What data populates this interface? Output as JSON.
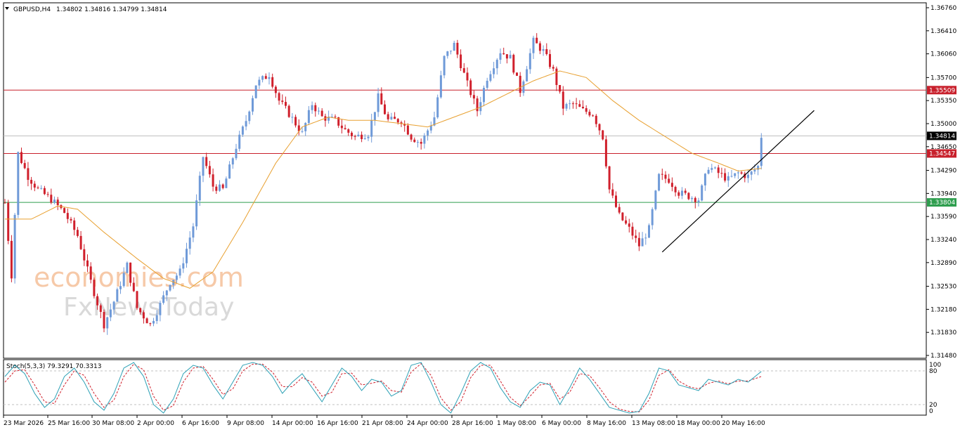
{
  "header": {
    "symbol": "GBPUSD,H4",
    "ohlc": "1.34802 1.34816 1.34799 1.34814"
  },
  "watermark": {
    "line1": "economies.com",
    "line2": "FxNewsToday"
  },
  "chart_data": [
    {
      "type": "candlestick",
      "title": "GBPUSD,H4",
      "y_ticks": [
        "1.36760",
        "1.36410",
        "1.36060",
        "1.35700",
        "1.35350",
        "1.35000",
        "1.34650",
        "1.34290",
        "1.33940",
        "1.33590",
        "1.33240",
        "1.32890",
        "1.32530",
        "1.32180",
        "1.31830",
        "1.31480"
      ],
      "ylim": [
        1.3148,
        1.3676
      ],
      "x_ticks": [
        "23 Mar 2026",
        "25 Mar 16:00",
        "30 Mar 08:00",
        "2 Apr 00:00",
        "6 Apr 16:00",
        "9 Apr 08:00",
        "14 Apr 00:00",
        "16 Apr 16:00",
        "21 Apr 08:00",
        "24 Apr 00:00",
        "28 Apr 16:00",
        "1 May 08:00",
        "6 May 00:00",
        "8 May 16:00",
        "13 May 08:00",
        "18 May 00:00",
        "20 May 16:00"
      ],
      "up_color": "#6f9ad8",
      "down_color": "#d0202c",
      "ma_color": "#e8a030",
      "price_series": [
        [
          0,
          1.338
        ],
        [
          2,
          1.327
        ],
        [
          4,
          1.3455
        ],
        [
          7,
          1.342
        ],
        [
          10,
          1.34
        ],
        [
          14,
          1.3385
        ],
        [
          18,
          1.3365
        ],
        [
          22,
          1.333
        ],
        [
          26,
          1.326
        ],
        [
          30,
          1.3195
        ],
        [
          33,
          1.323
        ],
        [
          37,
          1.3285
        ],
        [
          40,
          1.322
        ],
        [
          44,
          1.3195
        ],
        [
          47,
          1.3225
        ],
        [
          50,
          1.326
        ],
        [
          53,
          1.3275
        ],
        [
          57,
          1.3345
        ],
        [
          60,
          1.345
        ],
        [
          63,
          1.3405
        ],
        [
          66,
          1.34
        ],
        [
          70,
          1.3465
        ],
        [
          73,
          1.3505
        ],
        [
          76,
          1.356
        ],
        [
          80,
          1.3575
        ],
        [
          83,
          1.3535
        ],
        [
          86,
          1.3515
        ],
        [
          90,
          1.3485
        ],
        [
          93,
          1.353
        ],
        [
          96,
          1.351
        ],
        [
          100,
          1.3505
        ],
        [
          103,
          1.349
        ],
        [
          106,
          1.348
        ],
        [
          110,
          1.3485
        ],
        [
          113,
          1.354
        ],
        [
          116,
          1.3505
        ],
        [
          120,
          1.3505
        ],
        [
          123,
          1.348
        ],
        [
          126,
          1.347
        ],
        [
          130,
          1.351
        ],
        [
          133,
          1.36
        ],
        [
          136,
          1.362
        ],
        [
          140,
          1.356
        ],
        [
          143,
          1.352
        ],
        [
          146,
          1.357
        ],
        [
          150,
          1.361
        ],
        [
          153,
          1.36
        ],
        [
          156,
          1.355
        ],
        [
          160,
          1.3625
        ],
        [
          163,
          1.361
        ],
        [
          166,
          1.358
        ],
        [
          169,
          1.3525
        ],
        [
          172,
          1.353
        ],
        [
          175,
          1.352
        ],
        [
          178,
          1.3515
        ],
        [
          181,
          1.348
        ],
        [
          183,
          1.34
        ],
        [
          186,
          1.336
        ],
        [
          189,
          1.334
        ],
        [
          192,
          1.3315
        ],
        [
          195,
          1.334
        ],
        [
          198,
          1.342
        ],
        [
          201,
          1.3415
        ],
        [
          204,
          1.3395
        ],
        [
          207,
          1.339
        ],
        [
          210,
          1.3385
        ],
        [
          213,
          1.3435
        ],
        [
          216,
          1.3425
        ],
        [
          219,
          1.3415
        ],
        [
          222,
          1.3425
        ],
        [
          225,
          1.342
        ],
        [
          228,
          1.3435
        ],
        [
          229,
          1.3481
        ]
      ],
      "bars_shown": 230,
      "moving_average": [
        [
          0,
          1.3355
        ],
        [
          8,
          1.3355
        ],
        [
          16,
          1.3375
        ],
        [
          22,
          1.337
        ],
        [
          30,
          1.3335
        ],
        [
          40,
          1.3295
        ],
        [
          48,
          1.3265
        ],
        [
          56,
          1.325
        ],
        [
          63,
          1.3275
        ],
        [
          72,
          1.335
        ],
        [
          82,
          1.344
        ],
        [
          90,
          1.3495
        ],
        [
          98,
          1.351
        ],
        [
          104,
          1.3505
        ],
        [
          112,
          1.3505
        ],
        [
          120,
          1.35
        ],
        [
          128,
          1.3495
        ],
        [
          136,
          1.351
        ],
        [
          144,
          1.3525
        ],
        [
          152,
          1.3545
        ],
        [
          160,
          1.3565
        ],
        [
          168,
          1.358
        ],
        [
          176,
          1.357
        ],
        [
          184,
          1.3535
        ],
        [
          192,
          1.3505
        ],
        [
          200,
          1.348
        ],
        [
          208,
          1.3455
        ],
        [
          216,
          1.344
        ],
        [
          222,
          1.3428
        ],
        [
          229,
          1.3432
        ]
      ],
      "horizontal_lines": [
        {
          "value": 1.35509,
          "label": "1.35509",
          "color": "#c8202c"
        },
        {
          "value": 1.34547,
          "label": "1.34547",
          "color": "#c8202c"
        },
        {
          "value": 1.33804,
          "label": "1.33804",
          "color": "#2e9e4e"
        },
        {
          "value": 1.34814,
          "label": "1.34814",
          "color": "#000000",
          "current": true
        }
      ],
      "trendline": {
        "from": [
          199,
          1.3305
        ],
        "to": [
          245,
          1.352
        ]
      }
    },
    {
      "type": "line",
      "title": "Stoch(5,3,3) 79.3291 70.3313",
      "y_ticks": [
        "100",
        "80",
        "20",
        "0"
      ],
      "ylim": [
        0,
        100
      ],
      "levels": [
        80,
        20
      ],
      "main_color": "#2ba0b5",
      "signal_color": "#d0202c",
      "main": [
        [
          0,
          70
        ],
        [
          3,
          90
        ],
        [
          6,
          75
        ],
        [
          9,
          40
        ],
        [
          12,
          15
        ],
        [
          15,
          30
        ],
        [
          18,
          70
        ],
        [
          21,
          85
        ],
        [
          24,
          60
        ],
        [
          27,
          25
        ],
        [
          30,
          10
        ],
        [
          33,
          40
        ],
        [
          36,
          85
        ],
        [
          39,
          95
        ],
        [
          42,
          70
        ],
        [
          45,
          20
        ],
        [
          48,
          5
        ],
        [
          51,
          30
        ],
        [
          54,
          75
        ],
        [
          57,
          90
        ],
        [
          60,
          85
        ],
        [
          63,
          55
        ],
        [
          66,
          30
        ],
        [
          69,
          60
        ],
        [
          72,
          90
        ],
        [
          75,
          95
        ],
        [
          78,
          90
        ],
        [
          81,
          70
        ],
        [
          84,
          40
        ],
        [
          87,
          60
        ],
        [
          90,
          75
        ],
        [
          93,
          50
        ],
        [
          96,
          25
        ],
        [
          99,
          55
        ],
        [
          102,
          85
        ],
        [
          105,
          70
        ],
        [
          108,
          45
        ],
        [
          111,
          65
        ],
        [
          114,
          60
        ],
        [
          117,
          35
        ],
        [
          120,
          45
        ],
        [
          123,
          90
        ],
        [
          126,
          95
        ],
        [
          129,
          60
        ],
        [
          132,
          20
        ],
        [
          135,
          5
        ],
        [
          138,
          40
        ],
        [
          141,
          80
        ],
        [
          144,
          95
        ],
        [
          147,
          85
        ],
        [
          150,
          50
        ],
        [
          153,
          25
        ],
        [
          156,
          15
        ],
        [
          159,
          45
        ],
        [
          162,
          60
        ],
        [
          165,
          55
        ],
        [
          168,
          20
        ],
        [
          171,
          50
        ],
        [
          174,
          85
        ],
        [
          177,
          65
        ],
        [
          180,
          40
        ],
        [
          183,
          15
        ],
        [
          186,
          10
        ],
        [
          189,
          5
        ],
        [
          192,
          8
        ],
        [
          195,
          40
        ],
        [
          198,
          85
        ],
        [
          201,
          80
        ],
        [
          204,
          55
        ],
        [
          207,
          50
        ],
        [
          210,
          45
        ],
        [
          213,
          65
        ],
        [
          216,
          60
        ],
        [
          219,
          55
        ],
        [
          222,
          65
        ],
        [
          225,
          60
        ],
        [
          229,
          79
        ]
      ],
      "signal": [
        [
          0,
          60
        ],
        [
          3,
          80
        ],
        [
          6,
          82
        ],
        [
          9,
          55
        ],
        [
          12,
          25
        ],
        [
          15,
          22
        ],
        [
          18,
          55
        ],
        [
          21,
          80
        ],
        [
          24,
          72
        ],
        [
          27,
          40
        ],
        [
          30,
          15
        ],
        [
          33,
          28
        ],
        [
          36,
          70
        ],
        [
          39,
          92
        ],
        [
          42,
          82
        ],
        [
          45,
          35
        ],
        [
          48,
          10
        ],
        [
          51,
          18
        ],
        [
          54,
          60
        ],
        [
          57,
          85
        ],
        [
          60,
          88
        ],
        [
          63,
          65
        ],
        [
          66,
          38
        ],
        [
          69,
          48
        ],
        [
          72,
          80
        ],
        [
          75,
          92
        ],
        [
          78,
          92
        ],
        [
          81,
          78
        ],
        [
          84,
          52
        ],
        [
          87,
          52
        ],
        [
          90,
          68
        ],
        [
          93,
          60
        ],
        [
          96,
          35
        ],
        [
          99,
          42
        ],
        [
          102,
          75
        ],
        [
          105,
          76
        ],
        [
          108,
          55
        ],
        [
          111,
          58
        ],
        [
          114,
          62
        ],
        [
          117,
          45
        ],
        [
          120,
          42
        ],
        [
          123,
          78
        ],
        [
          126,
          93
        ],
        [
          129,
          72
        ],
        [
          132,
          32
        ],
        [
          135,
          10
        ],
        [
          138,
          25
        ],
        [
          141,
          68
        ],
        [
          144,
          90
        ],
        [
          147,
          90
        ],
        [
          150,
          62
        ],
        [
          153,
          33
        ],
        [
          156,
          18
        ],
        [
          159,
          35
        ],
        [
          162,
          55
        ],
        [
          165,
          58
        ],
        [
          168,
          30
        ],
        [
          171,
          42
        ],
        [
          174,
          75
        ],
        [
          177,
          72
        ],
        [
          180,
          50
        ],
        [
          183,
          25
        ],
        [
          186,
          12
        ],
        [
          189,
          8
        ],
        [
          192,
          7
        ],
        [
          195,
          28
        ],
        [
          198,
          72
        ],
        [
          201,
          82
        ],
        [
          204,
          62
        ],
        [
          207,
          52
        ],
        [
          210,
          48
        ],
        [
          213,
          58
        ],
        [
          216,
          62
        ],
        [
          219,
          57
        ],
        [
          222,
          62
        ],
        [
          225,
          62
        ],
        [
          229,
          70
        ]
      ]
    }
  ]
}
